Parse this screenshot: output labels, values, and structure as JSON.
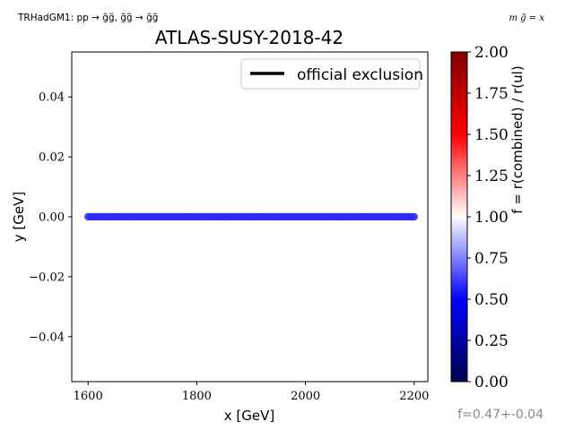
{
  "header": {
    "model_label": "TRHadGM1: pp → g̃g̃, g̃g̃ → g̃g̃",
    "mass_relation": "m g̃ = x"
  },
  "footer": {
    "fit_text": "f=0.47+-0.04"
  },
  "colors": {
    "scan_points": "#2a2af2",
    "exclusion_line": "#000000",
    "fit_text": "#888888"
  },
  "chart_data": {
    "type": "scatter",
    "title": "ATLAS-SUSY-2018-42",
    "xlabel": "x [GeV]",
    "ylabel": "y [GeV]",
    "xlim": [
      1570,
      2225
    ],
    "ylim": [
      -0.055,
      0.055
    ],
    "xticks": [
      1600,
      1800,
      2000,
      2200
    ],
    "yticks": [
      -0.04,
      -0.02,
      0.0,
      0.02,
      0.04
    ],
    "ytick_labels": [
      "−0.04",
      "−0.02",
      "0.00",
      "0.02",
      "0.04"
    ],
    "grid": false,
    "legend": {
      "placement": "top-right",
      "entries": [
        {
          "label": "official exclusion",
          "style": "line"
        }
      ]
    },
    "series": [
      {
        "values_x_range": [
          1600,
          2200
        ],
        "y": 0.0,
        "f_value": 0.47
      }
    ],
    "colorbar": {
      "label": "f = r(combined) / r(ul)",
      "min": 0.0,
      "max": 2.0,
      "ticks": [
        0.0,
        0.25,
        0.5,
        0.75,
        1.0,
        1.25,
        1.5,
        1.75,
        2.0
      ],
      "tick_labels": [
        "0.00",
        "0.25",
        "0.50",
        "0.75",
        "1.00",
        "1.25",
        "1.50",
        "1.75",
        "2.00"
      ]
    }
  }
}
